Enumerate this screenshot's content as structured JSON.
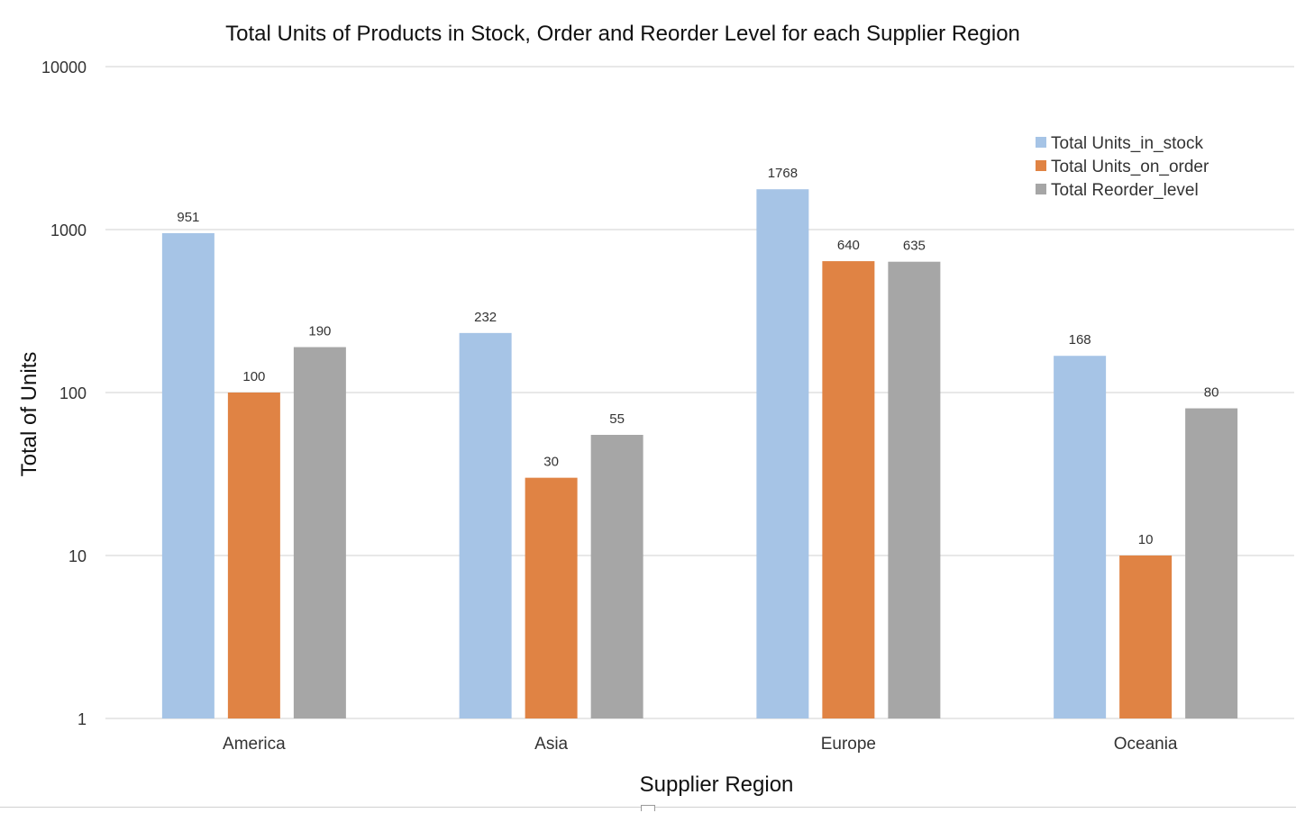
{
  "chart_data": {
    "type": "bar",
    "title": "Total Units of Products in Stock, Order and Reorder Level for each Supplier Region",
    "xlabel": "Supplier Region",
    "ylabel": "Total of Units",
    "yscale": "log",
    "ylim": [
      1,
      10000
    ],
    "yticks": [
      "1",
      "10",
      "100",
      "1000",
      "10000"
    ],
    "grid": true,
    "legend_position": "top-right",
    "categories": [
      "America",
      "Asia",
      "Europe",
      "Oceania"
    ],
    "series": [
      {
        "name": "Total Units_in_stock",
        "color": "#a6c4e6",
        "values": [
          951,
          232,
          1768,
          168
        ]
      },
      {
        "name": "Total Units_on_order",
        "color": "#e08344",
        "values": [
          100,
          30,
          640,
          10
        ]
      },
      {
        "name": "Total Reorder_level",
        "color": "#a6a6a6",
        "values": [
          190,
          55,
          635,
          80
        ]
      }
    ]
  }
}
